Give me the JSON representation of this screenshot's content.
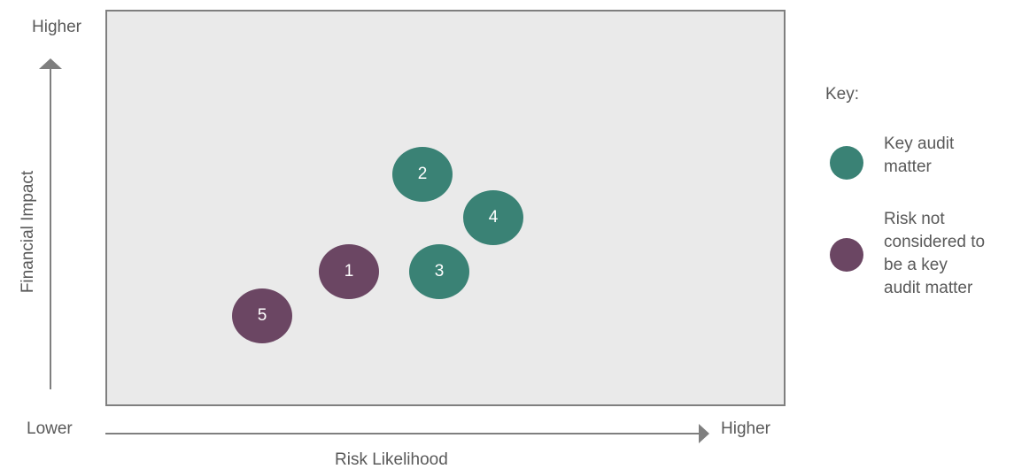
{
  "axes": {
    "y_high": "Higher",
    "x_low": "Lower",
    "x_high": "Higher",
    "y_label": "Financial Impact",
    "x_label": "Risk Likelihood"
  },
  "bubbles": [
    {
      "id": "1",
      "category": "not_key"
    },
    {
      "id": "2",
      "category": "key"
    },
    {
      "id": "3",
      "category": "key"
    },
    {
      "id": "4",
      "category": "key"
    },
    {
      "id": "5",
      "category": "not_key"
    }
  ],
  "key": {
    "title": "Key:",
    "items": [
      {
        "label": "Key audit\nmatter",
        "color": "#3a8275"
      },
      {
        "label": "Risk not\nconsidered to\nbe a key\naudit matter",
        "color": "#6b4663"
      }
    ]
  },
  "colors": {
    "key": "#3a8275",
    "not_key": "#6b4663",
    "plot_bg": "#eaeaea",
    "axis": "#7f7f7f"
  }
}
